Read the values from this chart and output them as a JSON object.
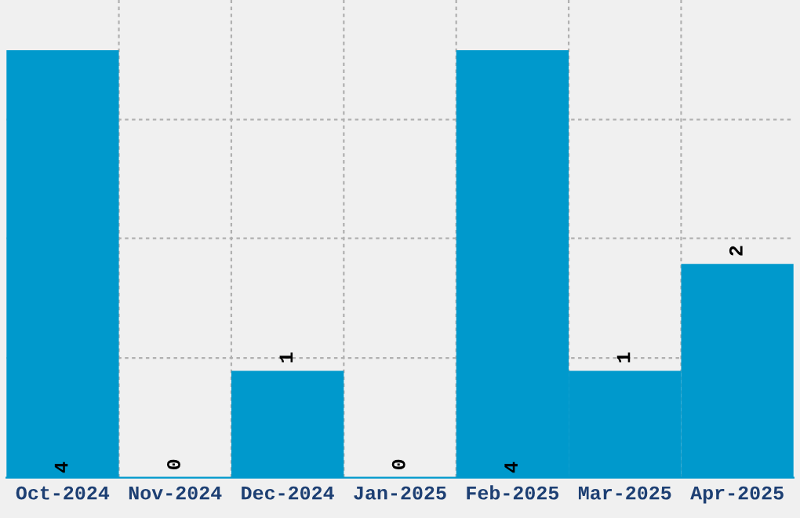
{
  "chart_data": {
    "type": "bar",
    "categories": [
      "Oct-2024",
      "Nov-2024",
      "Dec-2024",
      "Jan-2025",
      "Feb-2025",
      "Mar-2025",
      "Apr-2025"
    ],
    "values": [
      4,
      0,
      1,
      0,
      4,
      1,
      2
    ],
    "color": "#0099cc",
    "ylim": [
      0,
      4.47
    ],
    "yticks": [
      {
        "value": 1.12,
        "label": null
      },
      {
        "value": 2.24,
        "label": null
      },
      {
        "value": 3.35,
        "label": null
      }
    ],
    "tick_labels": "x",
    "grid": true,
    "data_labels": true
  }
}
